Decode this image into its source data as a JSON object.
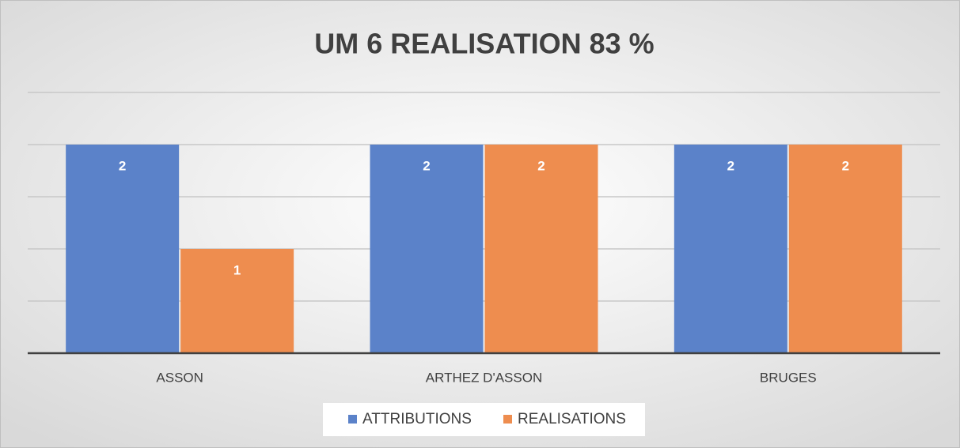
{
  "chart_data": {
    "type": "bar",
    "title": "UM 6 REALISATION 83 %",
    "categories": [
      "ASSON",
      "ARTHEZ D'ASSON",
      "BRUGES"
    ],
    "series": [
      {
        "name": "ATTRIBUTIONS",
        "color": "#5b82c9",
        "values": [
          2,
          2,
          2
        ]
      },
      {
        "name": "REALISATIONS",
        "color": "#ee8d4f",
        "values": [
          1,
          2,
          2
        ]
      }
    ],
    "ylim": [
      0,
      2.5
    ],
    "yticks": [
      0,
      0.5,
      1,
      1.5,
      2,
      2.5
    ],
    "grid": true,
    "legend": "bottom"
  }
}
